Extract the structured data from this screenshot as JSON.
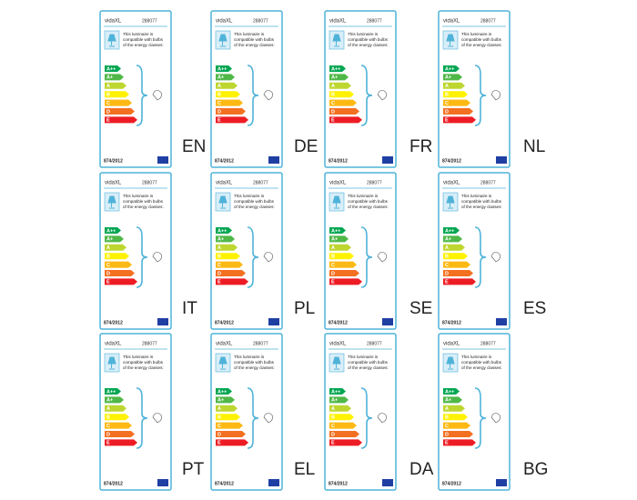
{
  "label": {
    "brand": "vidaXL",
    "code": "288077",
    "text": [
      "This luminaire is",
      "compatible with bulbs",
      "of the energy classes:"
    ],
    "classes": [
      "A++",
      "A+",
      "A",
      "B",
      "C",
      "D",
      "E"
    ],
    "regulation": "874/2012"
  },
  "languages": [
    "EN",
    "DE",
    "FR",
    "NL",
    "IT",
    "PL",
    "SE",
    "ES",
    "PT",
    "EL",
    "DA",
    "BG"
  ]
}
